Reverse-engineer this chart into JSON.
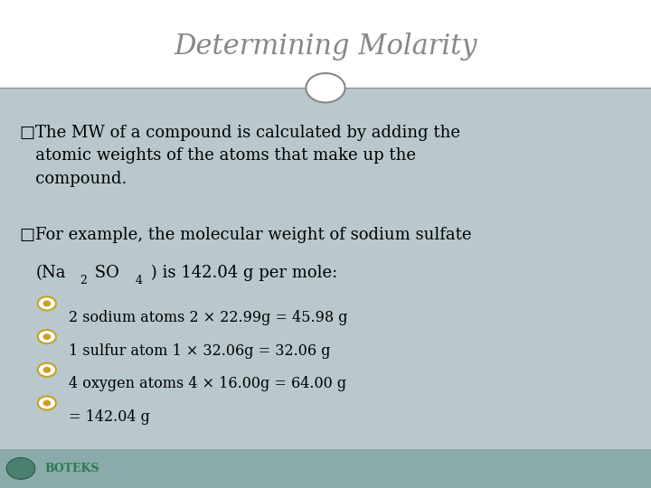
{
  "title": "Determining Molarity",
  "title_color": "#888888",
  "title_fontsize": 22,
  "bg_color_top": "#ffffff",
  "content_bg": "#b8c8cc",
  "header_line_color": "#888888",
  "bullet_color": "#c8a020",
  "text_color": "#000000",
  "footer_color": "#8aabaa",
  "sub_bullets": [
    "2 sodium atoms 2 × 22.99g = 45.98 g",
    "1 sulfur atom 1 × 32.06g = 32.06 g",
    "4 oxygen atoms 4 × 16.00g = 64.00 g",
    "= 142.04 g"
  ]
}
